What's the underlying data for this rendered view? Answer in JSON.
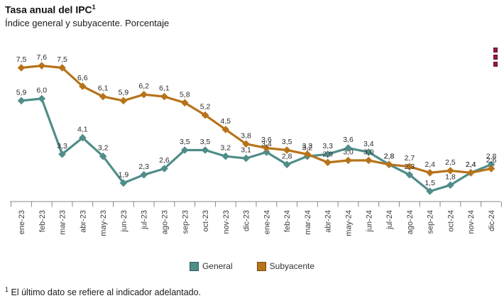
{
  "header": {
    "title": "Tasa anual del IPC",
    "title_sup": "1",
    "subtitle": "Índice general y subyacente. Porcentaje"
  },
  "menu": {
    "icon": "kebab-menu-squares",
    "color": "#991a3d"
  },
  "chart_data": {
    "type": "line",
    "title": "Tasa anual del IPC",
    "subtitle": "Índice general y subyacente. Porcentaje",
    "categories": [
      "ene-23",
      "feb-23",
      "mar-23",
      "abr-23",
      "may-23",
      "jun-23",
      "jul-23",
      "ago-23",
      "sep-23",
      "oct-23",
      "nov-23",
      "dic-23",
      "ene-24",
      "feb-24",
      "mar-24",
      "abr-24",
      "may-24",
      "jun-24",
      "jul-24",
      "ago-24",
      "sep-24",
      "oct-24",
      "nov-24",
      "dic-24"
    ],
    "series": [
      {
        "name": "General",
        "color": "#4f8d89",
        "values": [
          5.9,
          6.0,
          3.3,
          4.1,
          3.2,
          1.9,
          2.3,
          2.6,
          3.5,
          3.5,
          3.2,
          3.1,
          3.4,
          2.8,
          3.2,
          3.3,
          3.6,
          3.4,
          2.8,
          2.3,
          1.5,
          1.8,
          2.4,
          2.8
        ]
      },
      {
        "name": "Subyacente",
        "color": "#b7731a",
        "values": [
          7.5,
          7.6,
          7.5,
          6.6,
          6.1,
          5.9,
          6.2,
          6.1,
          5.8,
          5.2,
          4.5,
          3.8,
          3.6,
          3.5,
          3.3,
          2.9,
          3.0,
          3.0,
          2.8,
          2.7,
          2.4,
          2.5,
          2.4,
          2.6
        ]
      }
    ],
    "decimal_separator": ",",
    "data_labels": true,
    "data_label_color": "#2b2b2b",
    "marker": "diamond",
    "grid": false,
    "yaxis_visible": false,
    "ylim": [
      1.0,
      8.9
    ],
    "axis_color": "#888888",
    "xlabel_rotation": -90,
    "legend_position": "bottom"
  },
  "legend": {
    "items": [
      {
        "label": "General",
        "color": "#4f8d89"
      },
      {
        "label": "Subyacente",
        "color": "#b7731a"
      }
    ]
  },
  "footnote": {
    "sup": "1",
    "text": "El último dato se refiere al indicador adelantado."
  }
}
